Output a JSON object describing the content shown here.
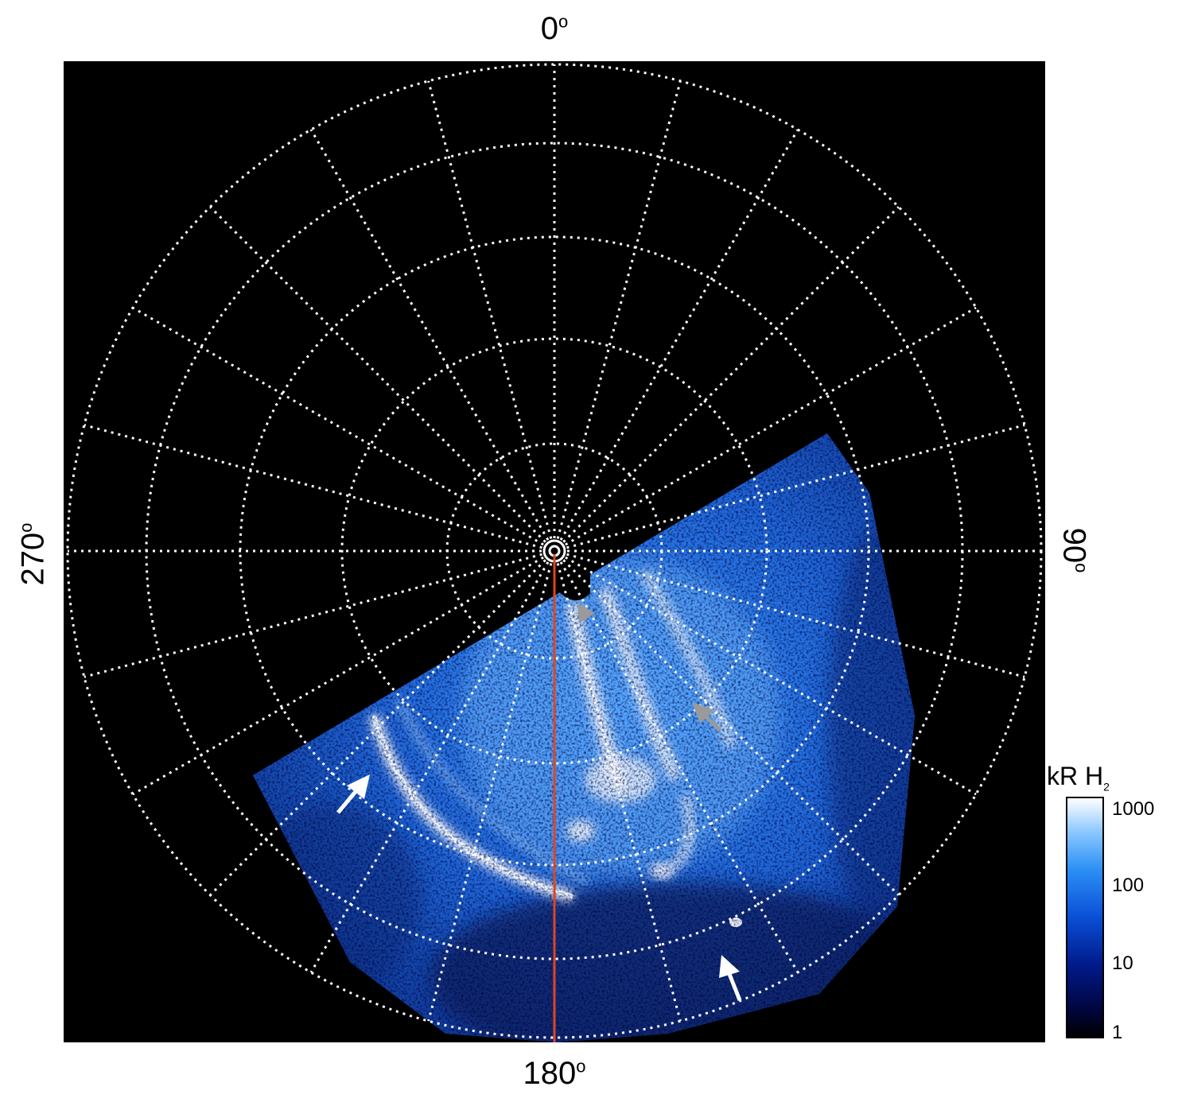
{
  "labels": {
    "top": "0",
    "bottom": "180",
    "left": "270",
    "right": "90",
    "degree_mark": "o"
  },
  "colorbar": {
    "title": "kR H",
    "title_sub": "2",
    "ticks": [
      "1000",
      "100",
      "10",
      "1"
    ]
  },
  "colors": {
    "background": "#000000",
    "grid": "#ffffff",
    "meridian_line": "#e0461e",
    "aurora_main": "#2a7ff2",
    "aurora_bright": "#ffffff",
    "arrow_white": "#ffffff",
    "arrow_gray": "#9a9a9a"
  }
}
